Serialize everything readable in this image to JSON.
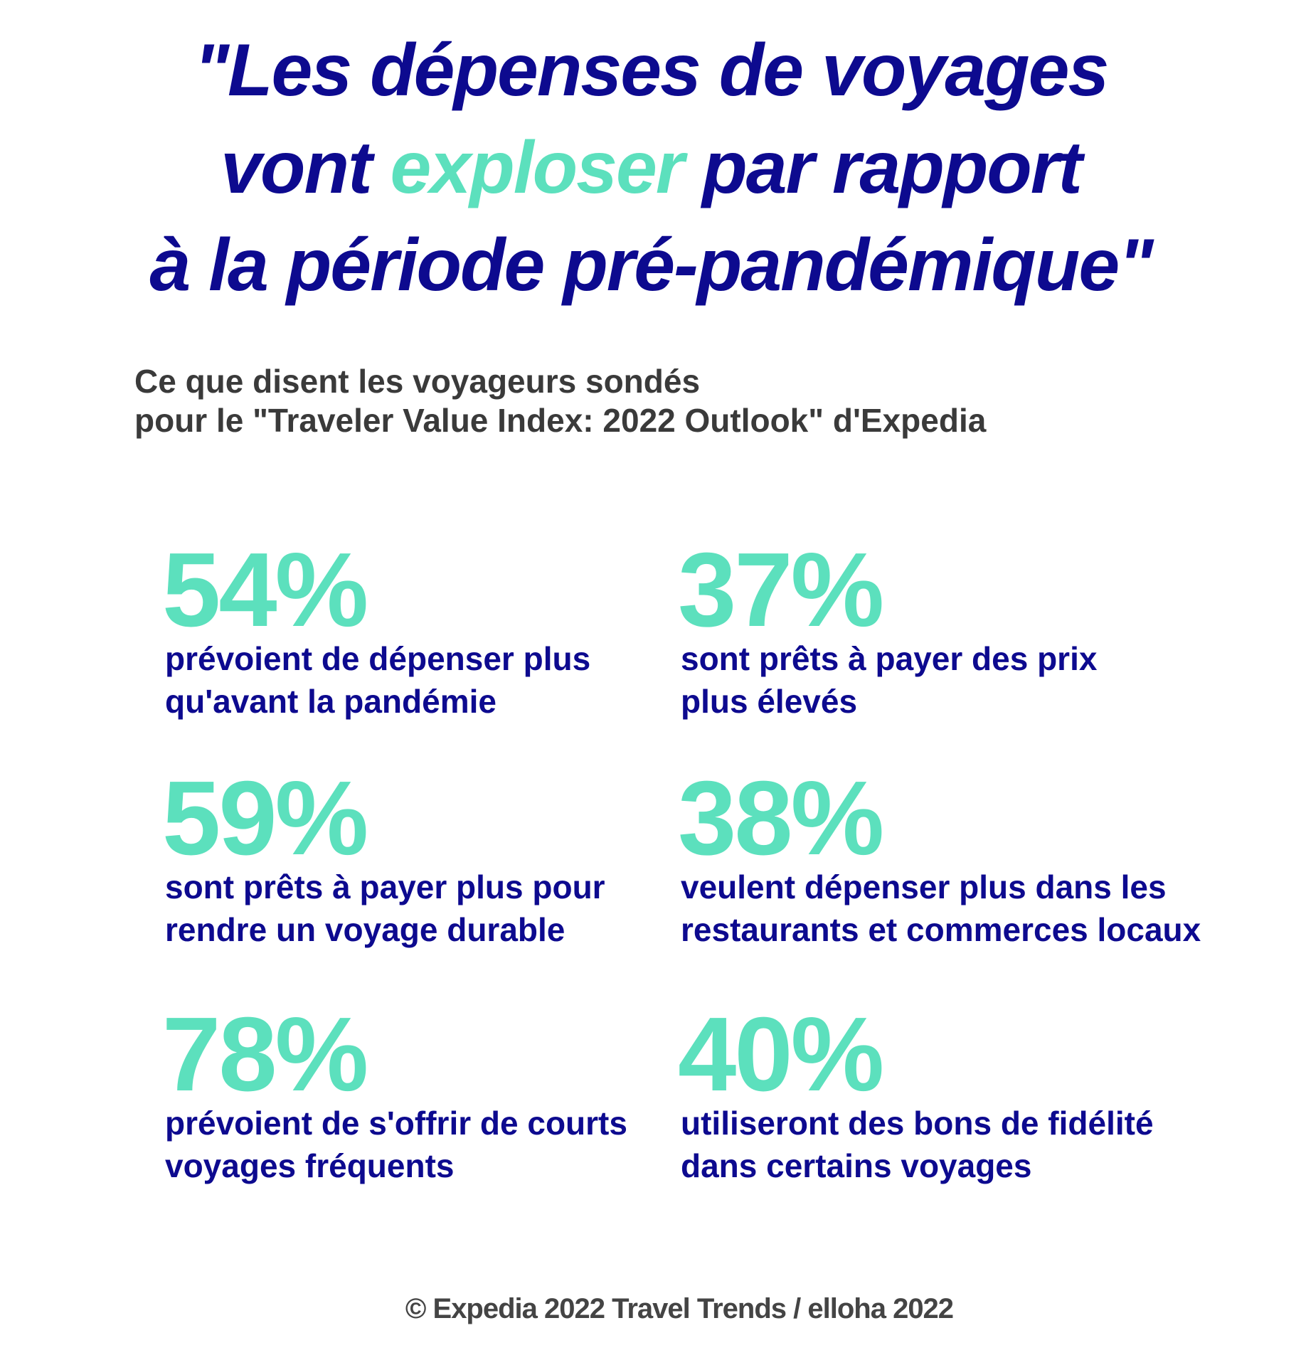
{
  "title": {
    "line1": "\"Les dépenses de voyages",
    "line2_before": "vont ",
    "highlight": "exploser",
    "line2_after": " par rapport",
    "line3": "à la période pré-pandémique\""
  },
  "subtitle": {
    "line1": "Ce que disent les voyageurs sondés",
    "line2": "pour le \"Traveler Value Index: 2022 Outlook\" d'Expedia"
  },
  "stats": [
    {
      "value": "54%",
      "lines": [
        "prévoient de dépenser plus",
        "qu'avant la pandémie"
      ]
    },
    {
      "value": "37%",
      "lines": [
        "sont prêts à payer des prix",
        "plus élevés"
      ]
    },
    {
      "value": "59%",
      "lines": [
        "sont prêts à payer plus pour",
        "rendre un voyage durable"
      ]
    },
    {
      "value": "38%",
      "lines": [
        "veulent dépenser plus dans les",
        "restaurants et commerces locaux"
      ]
    },
    {
      "value": "78%",
      "lines": [
        "prévoient de s'offrir de courts",
        "voyages fréquents"
      ]
    },
    {
      "value": "40%",
      "lines": [
        "utiliseront des bons de fidélité",
        "dans certains voyages"
      ]
    }
  ],
  "footer": "© Expedia 2022 Travel Trends / elloha 2022"
}
